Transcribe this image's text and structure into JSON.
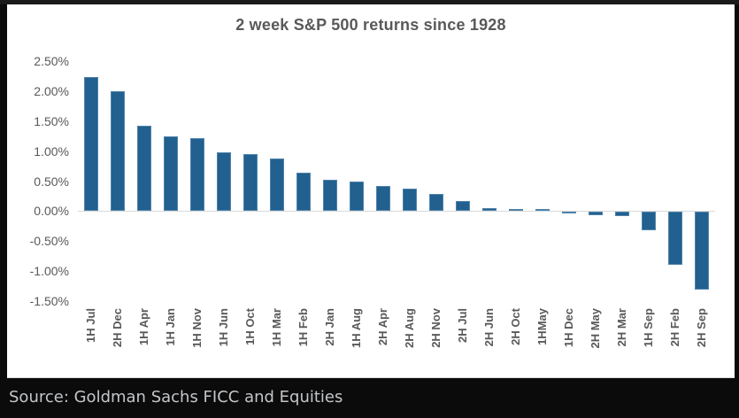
{
  "frame": {
    "source": "Source: Goldman Sachs FICC and Equities"
  },
  "chart_data": {
    "type": "bar",
    "title": "2 week S&P 500 returns since 1928",
    "categories": [
      "1H Jul",
      "2H Dec",
      "1H Apr",
      "1H Jan",
      "1H Nov",
      "1H Jun",
      "1H Oct",
      "1H Mar",
      "1H Feb",
      "2H Jan",
      "1H Aug",
      "2H Apr",
      "2H Aug",
      "2H Nov",
      "2H Jul",
      "2H Jun",
      "2H Oct",
      "1HMay",
      "1H Dec",
      "2H May",
      "2H Mar",
      "1H Sep",
      "2H Feb",
      "2H Sep"
    ],
    "values": [
      2.24,
      2.0,
      1.42,
      1.24,
      1.21,
      0.98,
      0.95,
      0.87,
      0.64,
      0.52,
      0.49,
      0.42,
      0.37,
      0.28,
      0.17,
      0.05,
      0.03,
      0.03,
      -0.02,
      -0.05,
      -0.07,
      -0.31,
      -0.88,
      -1.3
    ],
    "xlabel": "",
    "ylabel": "",
    "y_ticks": [
      "2.50%",
      "2.00%",
      "1.50%",
      "1.00%",
      "0.50%",
      "0.00%",
      "-0.50%",
      "-1.00%",
      "-1.50%"
    ],
    "ylim": [
      -1.5,
      2.5
    ],
    "grid": false,
    "legend_position": "none",
    "bar_color": "#21608f",
    "label_color": "#595959",
    "axis_line_color": "#d9d9d9"
  }
}
